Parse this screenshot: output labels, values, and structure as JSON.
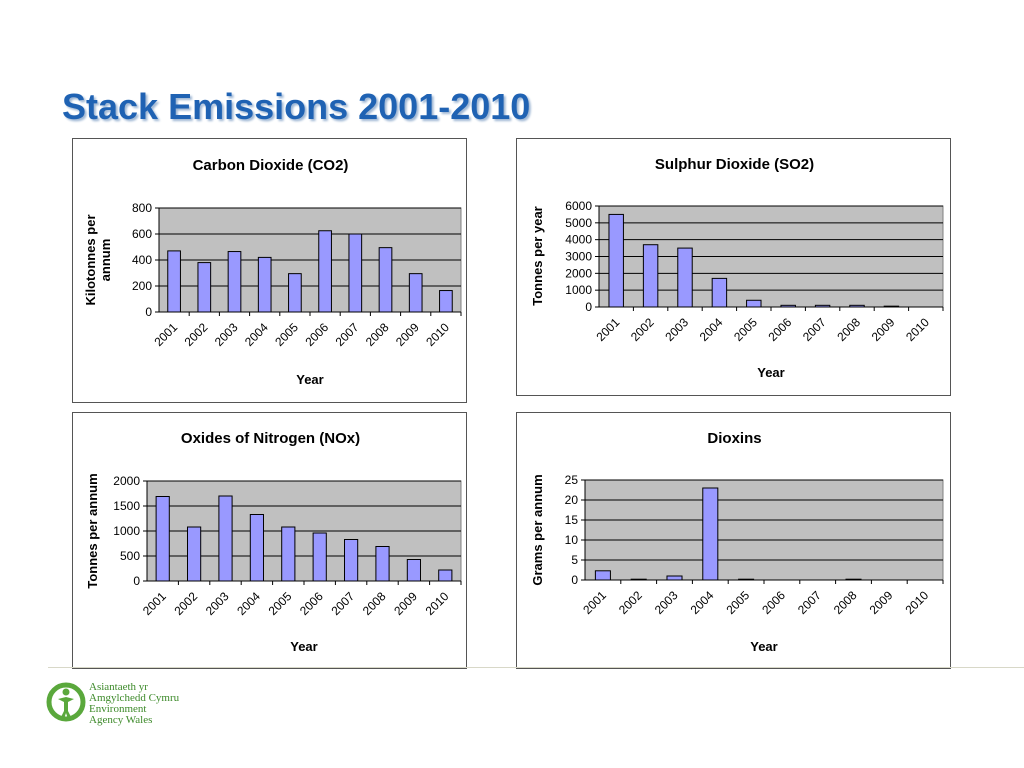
{
  "slide": {
    "title": "Stack Emissions 2001-2010"
  },
  "colors": {
    "bar_fill": "#9999ff",
    "plot_bg": "#c0c0c0",
    "title_blue": "#1f62b3",
    "logo_green": "#5aa83c"
  },
  "logo": {
    "icon": "tree-person-icon",
    "lines": [
      "Asiantaeth yr",
      "Amgylchedd Cymru",
      "Environment",
      "Agency Wales"
    ]
  },
  "chart_data": [
    {
      "type": "bar",
      "title": "Carbon Dioxide (CO2)",
      "xlabel": "Year",
      "ylabel": "Kilotonnes per annum",
      "categories": [
        "2001",
        "2002",
        "2003",
        "2004",
        "2005",
        "2006",
        "2007",
        "2008",
        "2009",
        "2010"
      ],
      "values": [
        470,
        380,
        465,
        420,
        295,
        625,
        600,
        495,
        295,
        165
      ],
      "ylim": [
        0,
        800
      ],
      "yticks": [
        0,
        200,
        400,
        600,
        800
      ],
      "grid": true,
      "legend": "none"
    },
    {
      "type": "bar",
      "title": "Sulphur Dioxide (SO2)",
      "xlabel": "Year",
      "ylabel": "Tonnes per year",
      "categories": [
        "2001",
        "2002",
        "2003",
        "2004",
        "2005",
        "2006",
        "2007",
        "2008",
        "2009",
        "2010"
      ],
      "values": [
        5500,
        3700,
        3500,
        1700,
        400,
        100,
        100,
        100,
        50,
        0
      ],
      "ylim": [
        0,
        6000
      ],
      "yticks": [
        0,
        1000,
        2000,
        3000,
        4000,
        5000,
        6000
      ],
      "grid": true,
      "legend": "none"
    },
    {
      "type": "bar",
      "title": "Oxides of Nitrogen (NOx)",
      "xlabel": "Year",
      "ylabel": "Tonnes per annum",
      "categories": [
        "2001",
        "2002",
        "2003",
        "2004",
        "2005",
        "2006",
        "2007",
        "2008",
        "2009",
        "2010"
      ],
      "values": [
        1690,
        1080,
        1700,
        1330,
        1080,
        960,
        830,
        690,
        430,
        220
      ],
      "ylim": [
        0,
        2000
      ],
      "yticks": [
        0,
        500,
        1000,
        1500,
        2000
      ],
      "grid": true,
      "legend": "none"
    },
    {
      "type": "bar",
      "title": "Dioxins",
      "xlabel": "Year",
      "ylabel": "Grams per annum",
      "categories": [
        "2001",
        "2002",
        "2003",
        "2004",
        "2005",
        "2006",
        "2007",
        "2008",
        "2009",
        "2010"
      ],
      "values": [
        2.3,
        0.2,
        1.0,
        23,
        0.2,
        0,
        0,
        0.2,
        0,
        0
      ],
      "ylim": [
        0,
        25
      ],
      "yticks": [
        0,
        5,
        10,
        15,
        20,
        25
      ],
      "grid": true,
      "legend": "none"
    }
  ]
}
